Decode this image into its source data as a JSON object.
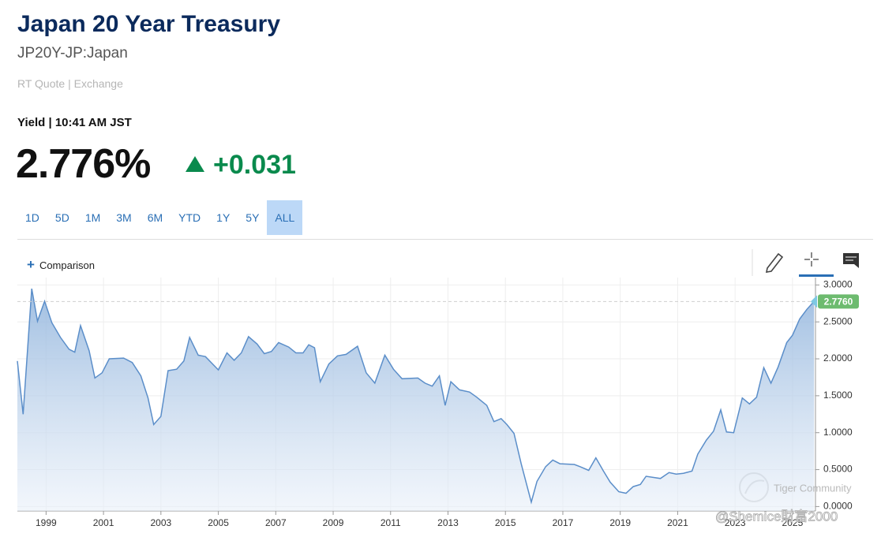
{
  "header": {
    "title": "Japan 20 Year Treasury",
    "symbol": "JP20Y-JP:Japan",
    "quote_source": "RT Quote | Exchange"
  },
  "quote": {
    "label": "Yield | 10:41 AM JST",
    "value": "2.776%",
    "change": "+0.031"
  },
  "ranges": [
    "1D",
    "5D",
    "1M",
    "3M",
    "6M",
    "YTD",
    "1Y",
    "5Y",
    "ALL"
  ],
  "selected_range": "ALL",
  "comparison": "Comparison",
  "watermark": [
    "Tiger Community",
    "@Shemice財富2000"
  ],
  "chart_data": {
    "type": "area",
    "x": [
      1998.0,
      1998.2,
      1998.5,
      1998.7,
      1998.95,
      1999.2,
      1999.5,
      1999.8,
      2000.0,
      2000.2,
      2000.5,
      2000.7,
      2000.95,
      2001.2,
      2001.7,
      2002.0,
      2002.3,
      2002.55,
      2002.75,
      2003.0,
      2003.25,
      2003.55,
      2003.8,
      2004.0,
      2004.3,
      2004.55,
      2005.0,
      2005.3,
      2005.55,
      2005.8,
      2006.05,
      2006.35,
      2006.6,
      2006.85,
      2007.1,
      2007.45,
      2007.7,
      2007.95,
      2008.15,
      2008.35,
      2008.55,
      2008.85,
      2009.15,
      2009.45,
      2009.85,
      2010.15,
      2010.45,
      2010.8,
      2011.1,
      2011.4,
      2011.95,
      2012.2,
      2012.45,
      2012.7,
      2012.9,
      2013.1,
      2013.4,
      2013.75,
      2014.0,
      2014.35,
      2014.6,
      2014.85,
      2015.05,
      2015.3,
      2015.55,
      2015.9,
      2016.1,
      2016.4,
      2016.65,
      2016.9,
      2017.4,
      2017.6,
      2017.9,
      2018.15,
      2018.4,
      2018.65,
      2018.95,
      2019.2,
      2019.45,
      2019.7,
      2019.9,
      2020.4,
      2020.7,
      2020.95,
      2021.2,
      2021.5,
      2021.7,
      2022.0,
      2022.25,
      2022.5,
      2022.7,
      2022.95,
      2023.25,
      2023.5,
      2023.75,
      2024.0,
      2024.25,
      2024.5,
      2024.8,
      2025.0,
      2025.25,
      2025.5,
      2025.75
    ],
    "values": [
      1.97,
      1.25,
      2.95,
      2.51,
      2.78,
      2.49,
      2.29,
      2.13,
      2.09,
      2.45,
      2.11,
      1.74,
      1.81,
      2.0,
      2.01,
      1.95,
      1.77,
      1.47,
      1.11,
      1.22,
      1.84,
      1.86,
      1.97,
      2.29,
      2.05,
      2.03,
      1.85,
      2.08,
      1.98,
      2.08,
      2.3,
      2.2,
      2.07,
      2.1,
      2.22,
      2.16,
      2.08,
      2.08,
      2.19,
      2.15,
      1.69,
      1.93,
      2.04,
      2.06,
      2.17,
      1.81,
      1.67,
      2.05,
      1.86,
      1.73,
      1.74,
      1.67,
      1.63,
      1.77,
      1.37,
      1.69,
      1.58,
      1.55,
      1.48,
      1.37,
      1.15,
      1.19,
      1.11,
      0.99,
      0.58,
      0.06,
      0.34,
      0.54,
      0.63,
      0.58,
      0.57,
      0.54,
      0.49,
      0.66,
      0.49,
      0.33,
      0.2,
      0.18,
      0.27,
      0.3,
      0.41,
      0.38,
      0.46,
      0.44,
      0.45,
      0.48,
      0.71,
      0.9,
      1.02,
      1.31,
      1.01,
      1.0,
      1.47,
      1.39,
      1.48,
      1.88,
      1.67,
      1.89,
      2.22,
      2.32,
      2.54,
      2.67,
      2.776
    ],
    "color": "#5b8ec9",
    "xlim": [
      1998.0,
      2025.8
    ],
    "xticks": [
      1999,
      2001,
      2003,
      2005,
      2007,
      2009,
      2011,
      2013,
      2015,
      2017,
      2019,
      2021,
      2023,
      2025
    ],
    "ylim": [
      -0.06,
      3.1
    ],
    "yticks": [
      {
        "value": 0,
        "label": "0.0000"
      },
      {
        "value": 0.5,
        "label": "0.5000"
      },
      {
        "value": 1,
        "label": "1.0000"
      },
      {
        "value": 1.5,
        "label": "1.5000"
      },
      {
        "value": 2,
        "label": "2.0000"
      },
      {
        "value": 2.5,
        "label": "2.5000"
      },
      {
        "value": 3,
        "label": "3.0000"
      }
    ],
    "grid": true,
    "reference_line": {
      "value": 2.776,
      "label": "2.7760",
      "color": "#6dbb6f"
    }
  }
}
